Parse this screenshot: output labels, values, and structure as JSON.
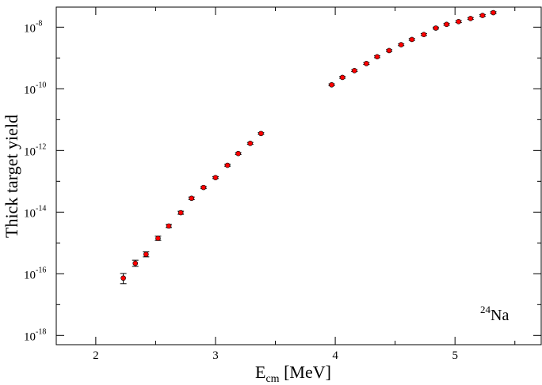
{
  "chart_data": {
    "type": "scatter",
    "xlabel": {
      "base": "E",
      "sub": "cm",
      "rest": " [MeV]"
    },
    "ylabel": "Thick target yield",
    "xlim": [
      1.67,
      5.72
    ],
    "ylim_exp": [
      -18.3,
      -7.35
    ],
    "y_scale": "log",
    "grid": false,
    "x_ticks": [
      2,
      3,
      4,
      5
    ],
    "y_ticks": [
      {
        "base": "10",
        "exp": "-18",
        "value": -18
      },
      {
        "base": "10",
        "exp": "-16",
        "value": -16
      },
      {
        "base": "10",
        "exp": "-14",
        "value": -14
      },
      {
        "base": "10",
        "exp": "-12",
        "value": -12
      },
      {
        "base": "10",
        "exp": "-10",
        "value": -10
      },
      {
        "base": "10",
        "exp": "-8",
        "value": -8
      }
    ],
    "annotation": {
      "sup": "24",
      "text": "Na"
    },
    "marker_color": "#ff0000",
    "series": [
      {
        "points": [
          {
            "x": 2.23,
            "log10y": -16.14,
            "err_lo": 0.18,
            "err_hi": 0.15
          },
          {
            "x": 2.33,
            "log10y": -15.66,
            "err_lo": 0.1,
            "err_hi": 0.1
          },
          {
            "x": 2.42,
            "log10y": -15.37,
            "err_lo": 0.08,
            "err_hi": 0.08
          },
          {
            "x": 2.52,
            "log10y": -14.85,
            "err_lo": 0.07,
            "err_hi": 0.07
          },
          {
            "x": 2.61,
            "log10y": -14.45,
            "err_lo": 0.05,
            "err_hi": 0.05
          },
          {
            "x": 2.71,
            "log10y": -14.02,
            "err_lo": 0.05,
            "err_hi": 0.05
          },
          {
            "x": 2.8,
            "log10y": -13.55,
            "err_lo": 0.04,
            "err_hi": 0.04
          },
          {
            "x": 2.9,
            "log10y": -13.2,
            "err_lo": 0.03,
            "err_hi": 0.03
          },
          {
            "x": 3.0,
            "log10y": -12.88,
            "err_lo": 0.03,
            "err_hi": 0.03
          },
          {
            "x": 3.1,
            "log10y": -12.48,
            "err_lo": 0.03,
            "err_hi": 0.03
          },
          {
            "x": 3.19,
            "log10y": -12.1,
            "err_lo": 0.03,
            "err_hi": 0.03
          },
          {
            "x": 3.29,
            "log10y": -11.77,
            "err_lo": 0.03,
            "err_hi": 0.03
          },
          {
            "x": 3.38,
            "log10y": -11.45,
            "err_lo": 0.03,
            "err_hi": 0.03
          },
          {
            "x": 3.97,
            "log10y": -9.87,
            "err_lo": 0.03,
            "err_hi": 0.03
          },
          {
            "x": 4.06,
            "log10y": -9.63,
            "err_lo": 0.03,
            "err_hi": 0.03
          },
          {
            "x": 4.16,
            "log10y": -9.41,
            "err_lo": 0.03,
            "err_hi": 0.03
          },
          {
            "x": 4.26,
            "log10y": -9.18,
            "err_lo": 0.03,
            "err_hi": 0.03
          },
          {
            "x": 4.35,
            "log10y": -8.96,
            "err_lo": 0.03,
            "err_hi": 0.03
          },
          {
            "x": 4.45,
            "log10y": -8.76,
            "err_lo": 0.03,
            "err_hi": 0.03
          },
          {
            "x": 4.55,
            "log10y": -8.57,
            "err_lo": 0.03,
            "err_hi": 0.03
          },
          {
            "x": 4.64,
            "log10y": -8.4,
            "err_lo": 0.03,
            "err_hi": 0.03
          },
          {
            "x": 4.74,
            "log10y": -8.24,
            "err_lo": 0.03,
            "err_hi": 0.03
          },
          {
            "x": 4.84,
            "log10y": -8.03,
            "err_lo": 0.03,
            "err_hi": 0.03
          },
          {
            "x": 4.93,
            "log10y": -7.91,
            "err_lo": 0.03,
            "err_hi": 0.03
          },
          {
            "x": 5.03,
            "log10y": -7.82,
            "err_lo": 0.03,
            "err_hi": 0.03
          },
          {
            "x": 5.13,
            "log10y": -7.72,
            "err_lo": 0.03,
            "err_hi": 0.03
          },
          {
            "x": 5.23,
            "log10y": -7.62,
            "err_lo": 0.03,
            "err_hi": 0.03
          },
          {
            "x": 5.32,
            "log10y": -7.53,
            "err_lo": 0.03,
            "err_hi": 0.03
          }
        ]
      }
    ]
  }
}
